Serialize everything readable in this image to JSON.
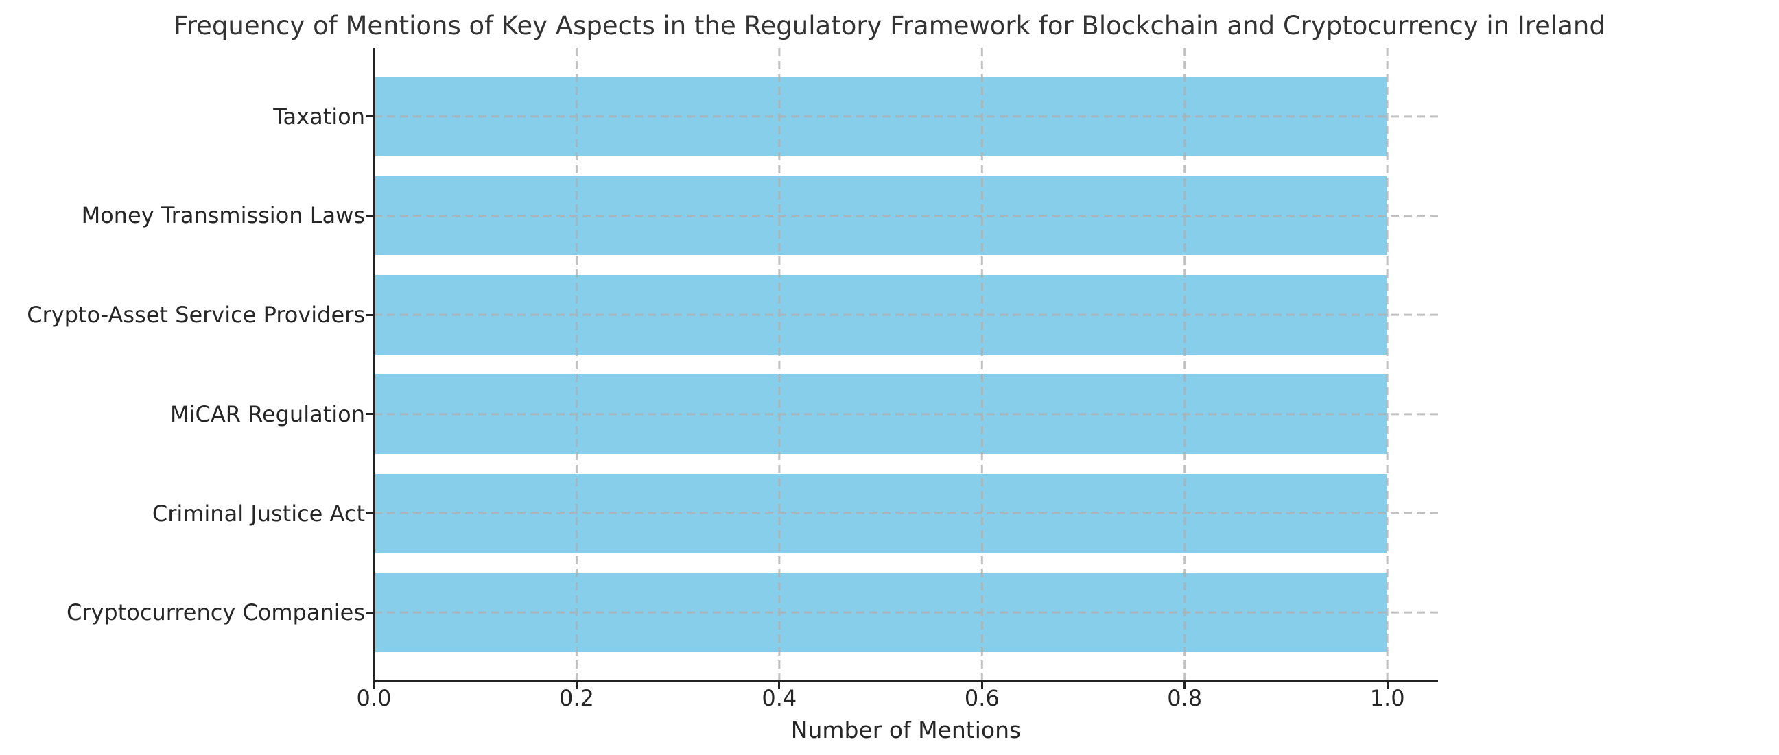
{
  "chart_data": {
    "type": "bar",
    "orientation": "horizontal",
    "title": "Frequency of Mentions of Key Aspects in the Regulatory Framework for Blockchain and Cryptocurrency in Ireland",
    "xlabel": "Number of Mentions",
    "ylabel": "",
    "categories": [
      "Taxation",
      "Money Transmission Laws",
      "Crypto-Asset Service Providers",
      "MiCAR Regulation",
      "Criminal Justice Act",
      "Cryptocurrency Companies"
    ],
    "values": [
      1.0,
      1.0,
      1.0,
      1.0,
      1.0,
      1.0
    ],
    "x_ticks": [
      0.0,
      0.2,
      0.4,
      0.6,
      0.8,
      1.0
    ],
    "x_tick_labels": [
      "0.0",
      "0.2",
      "0.4",
      "0.6",
      "0.8",
      "1.0"
    ],
    "xlim": [
      0,
      1.05
    ],
    "ylim": [
      -0.69,
      5.69
    ],
    "bar_thickness": 0.8,
    "legend": "none",
    "grid": {
      "axes": "both",
      "style": "dashed",
      "color": "#b0b0b0",
      "opacity": 0.78
    }
  },
  "colors": {
    "background": "#ffffff",
    "bar": "#87CEEB",
    "grid": "#b0b0b0",
    "spine": "#222222",
    "text": "#262626",
    "title_text": "#333333"
  }
}
